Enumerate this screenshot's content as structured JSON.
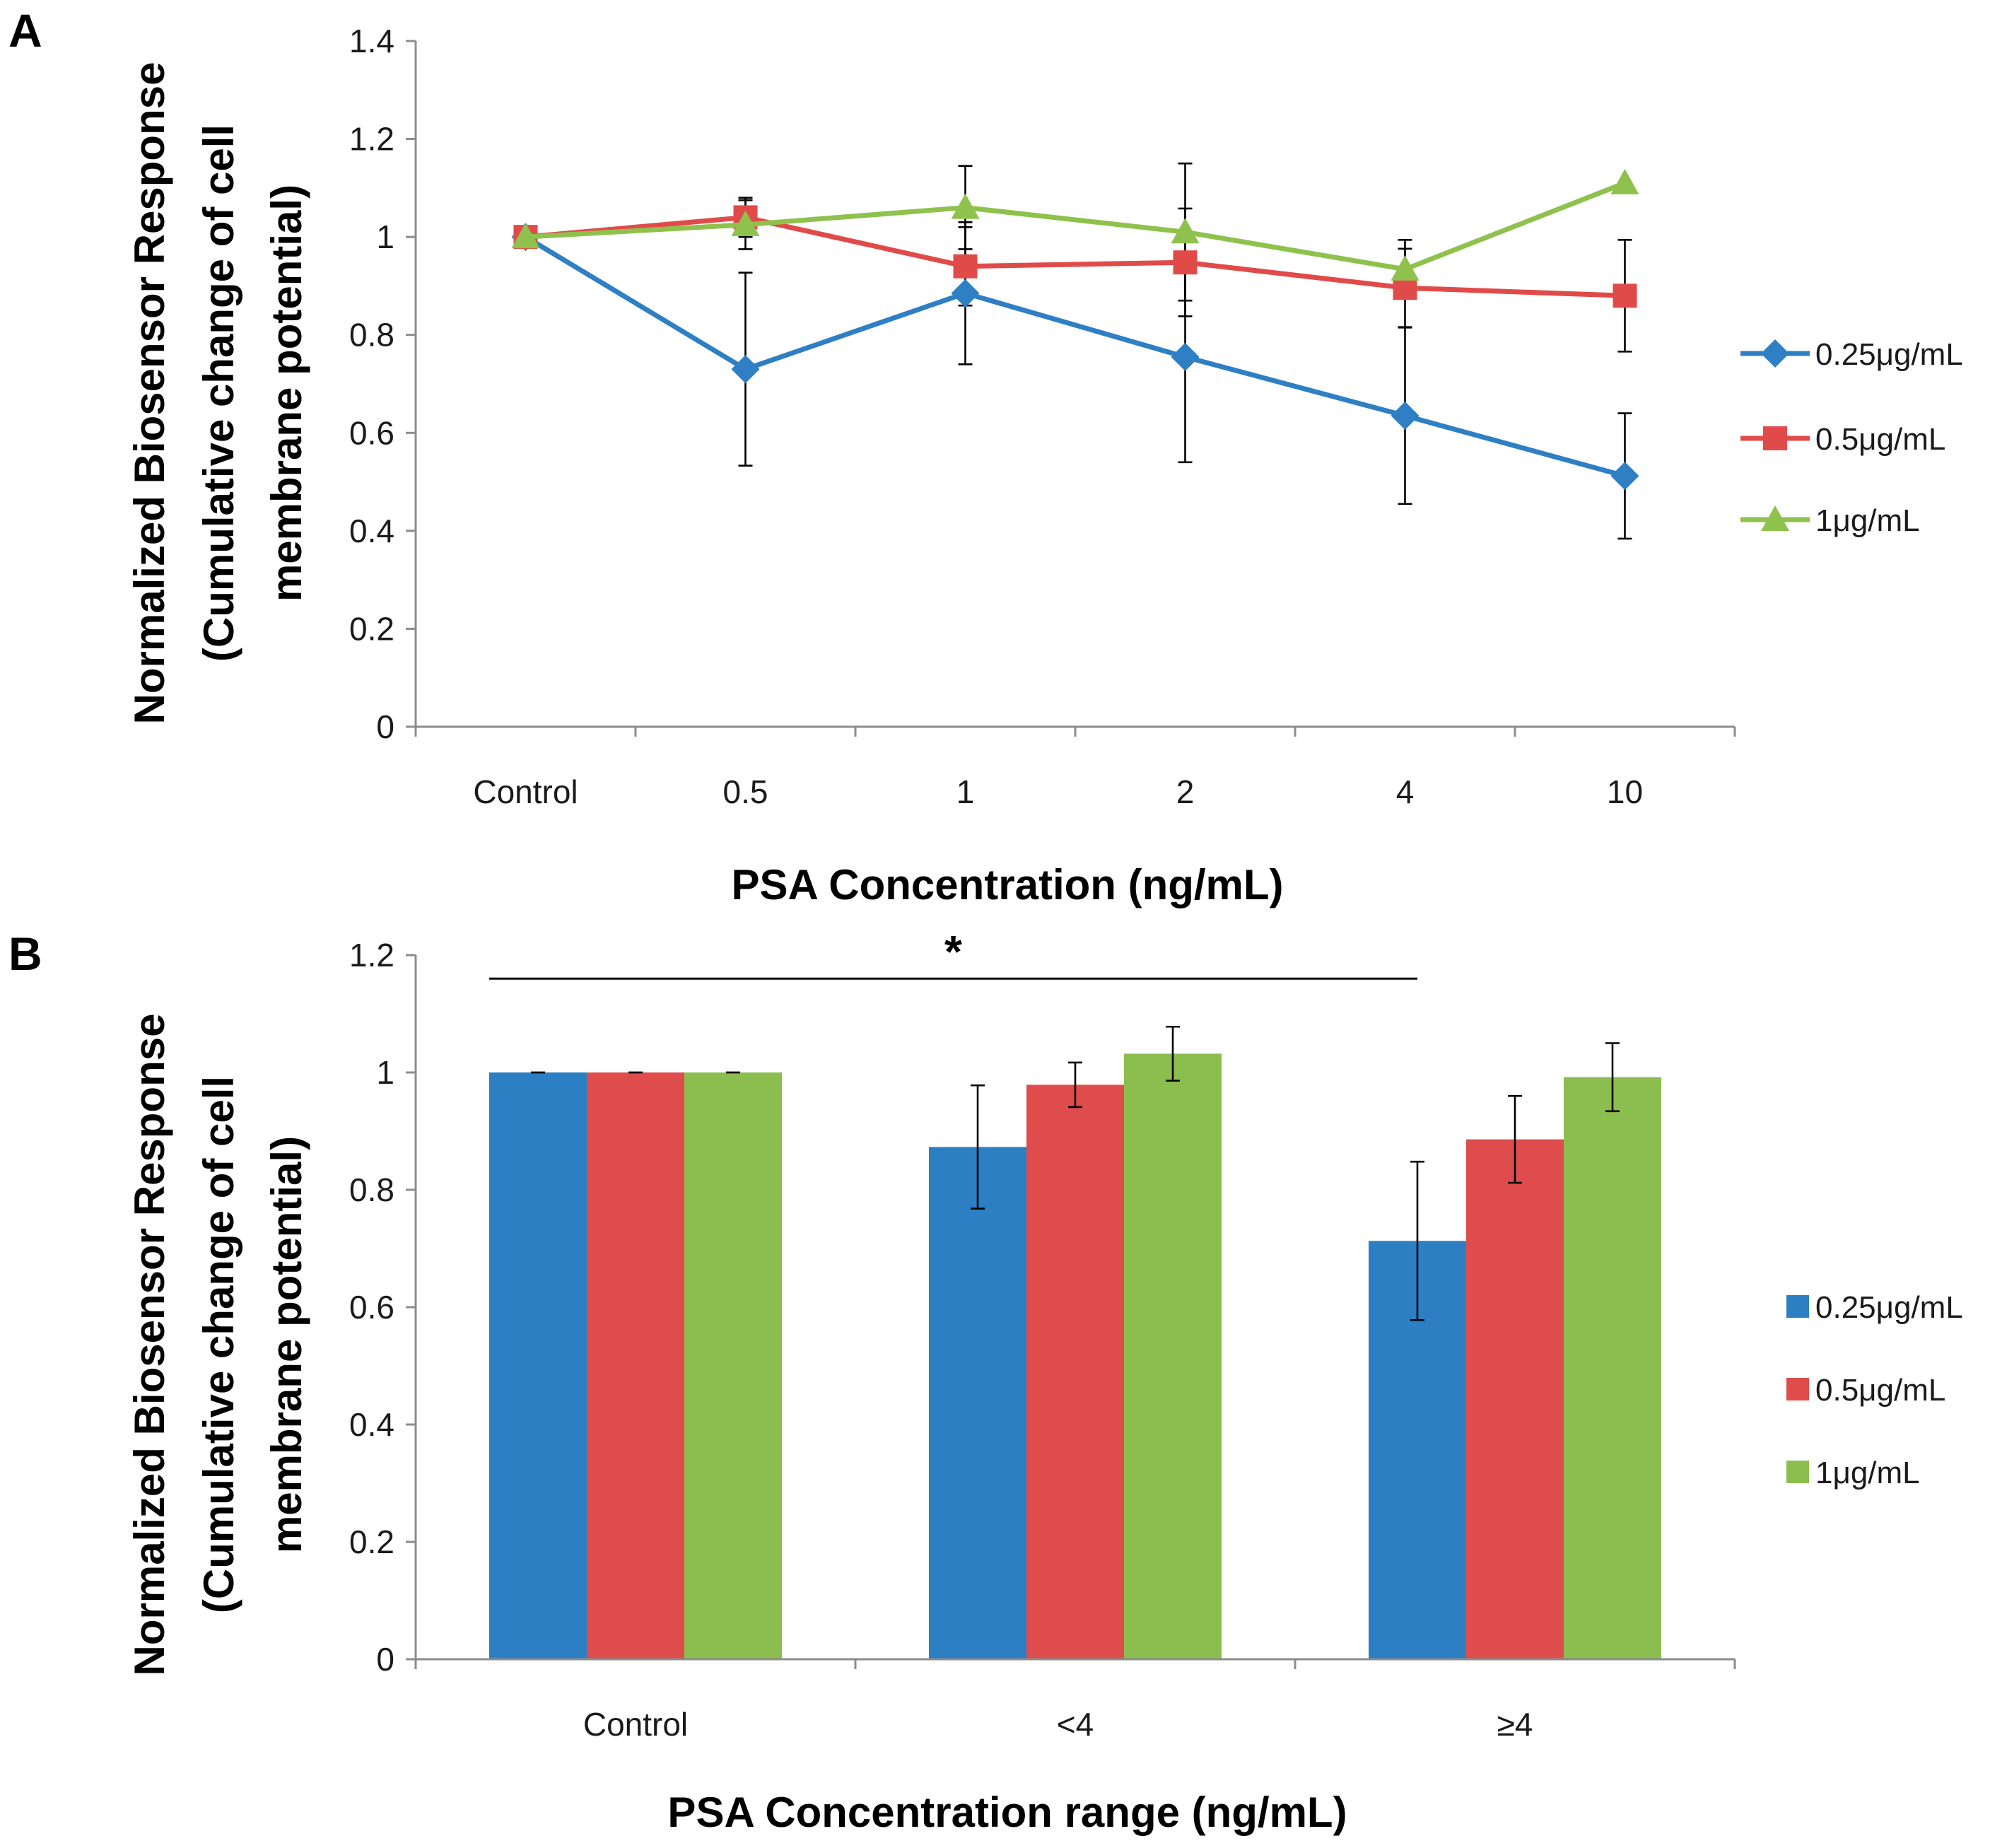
{
  "chart_data": [
    {
      "panel": "A",
      "type": "line",
      "title": "",
      "xlabel": "PSA Concentration (ng/mL)",
      "ylabel_line1": "Normalized Biosensor Response",
      "ylabel_line2": "(Cumulative change of cell",
      "ylabel_line3": "membrane potential)",
      "categories": [
        "Control",
        "0.5",
        "1",
        "2",
        "4",
        "10"
      ],
      "ylim": [
        0,
        1.4
      ],
      "yticks": [
        "0",
        "0.2",
        "0.4",
        "0.6",
        "0.8",
        "1",
        "1.2",
        "1.4"
      ],
      "legend_position": "right",
      "grid": false,
      "series": [
        {
          "name": "0.25μg/mL",
          "marker": "diamond",
          "color": "#2e7fc4",
          "values": [
            1.0,
            0.73,
            0.885,
            0.755,
            0.635,
            0.512
          ],
          "errors": [
            0.0,
            0.197,
            0.145,
            0.215,
            0.18,
            0.128
          ]
        },
        {
          "name": "0.5μg/mL",
          "marker": "square",
          "color": "#e04b4a",
          "values": [
            1.0,
            1.04,
            0.94,
            0.948,
            0.896,
            0.88
          ],
          "errors": [
            0.0,
            0.04,
            0.08,
            0.11,
            0.08,
            0.114
          ]
        },
        {
          "name": "1μg/mL",
          "marker": "triangle",
          "color": "#8fc14d",
          "values": [
            1.0,
            1.025,
            1.06,
            1.01,
            0.934,
            1.11
          ],
          "errors": [
            0.0,
            0.05,
            0.085,
            0.14,
            0.06,
            0.0
          ]
        }
      ]
    },
    {
      "panel": "B",
      "type": "bar",
      "title": "",
      "xlabel": "PSA Concentration range (ng/mL)",
      "ylabel_line1": "Normalized Biosensor Response",
      "ylabel_line2": "(Cumulative change of cell",
      "ylabel_line3": "membrane potential)",
      "categories": [
        "Control",
        "<4",
        "≥4"
      ],
      "ylim": [
        0,
        1.2
      ],
      "yticks": [
        "0",
        "0.2",
        "0.4",
        "0.6",
        "0.8",
        "1",
        "1.2"
      ],
      "legend_position": "right",
      "grid": false,
      "significance": {
        "label": "*",
        "from_category": "Control",
        "to_category": "≥4",
        "y": 1.16
      },
      "series": [
        {
          "name": "0.25μg/mL",
          "color": "#2c7fc3",
          "values": [
            1.0,
            0.873,
            0.713
          ],
          "errors": [
            0.0,
            0.105,
            0.135
          ]
        },
        {
          "name": "0.5μg/mL",
          "color": "#de4d4c",
          "values": [
            1.0,
            0.979,
            0.886
          ],
          "errors": [
            0.0,
            0.038,
            0.074
          ]
        },
        {
          "name": "1μg/mL",
          "color": "#8bbd4f",
          "values": [
            1.0,
            1.032,
            0.992
          ],
          "errors": [
            0.0,
            0.046,
            0.058
          ]
        }
      ]
    }
  ]
}
